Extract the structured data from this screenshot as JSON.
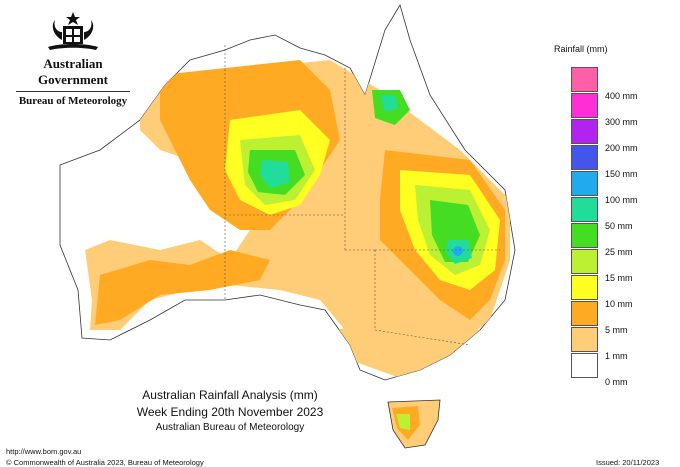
{
  "header": {
    "government": "Australian Government",
    "agency": "Bureau of Meteorology"
  },
  "map": {
    "title": "Australian Rainfall Analysis (mm)",
    "period": "Week Ending 20th November 2023",
    "source": "Australian Bureau of Meteorology"
  },
  "legend": {
    "title": "Rainfall (mm)",
    "items": [
      {
        "label": "400 mm",
        "color": "#ff5fa8"
      },
      {
        "label": "300 mm",
        "color": "#ff2ed6"
      },
      {
        "label": "200 mm",
        "color": "#b222f0"
      },
      {
        "label": "150 mm",
        "color": "#4455ee"
      },
      {
        "label": "100 mm",
        "color": "#22aaee"
      },
      {
        "label": "50 mm",
        "color": "#22dd99"
      },
      {
        "label": "25 mm",
        "color": "#44dd22"
      },
      {
        "label": "15 mm",
        "color": "#bbf033"
      },
      {
        "label": "10 mm",
        "color": "#ffff22"
      },
      {
        "label": "5 mm",
        "color": "#ffaa22"
      },
      {
        "label": "1 mm",
        "color": "#ffcc77"
      },
      {
        "label": "0 mm",
        "color": "#ffffff"
      }
    ]
  },
  "footer": {
    "url": "http://www.bom.gov.au",
    "copyright": "© Commonwealth of Australia 2023, Bureau of Meteorology",
    "issued": "Issued: 20/11/2023"
  }
}
